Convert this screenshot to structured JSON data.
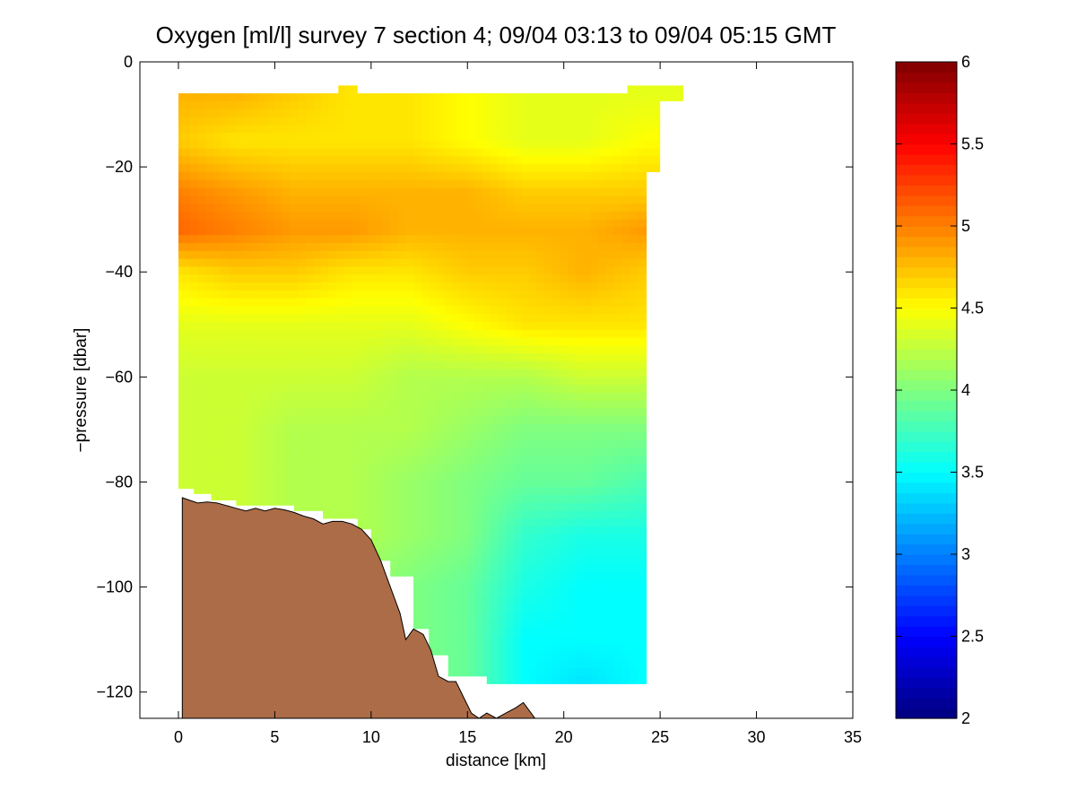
{
  "chart_data": [
    {
      "type": "heatmap",
      "title": "Oxygen [ml/l] survey 7 section 4; 09/04 03:13 to 09/04 05:15 GMT",
      "xlabel": "distance [km]",
      "ylabel": "−pressure [dbar]",
      "xlim": [
        -2,
        35
      ],
      "ylim": [
        -125,
        0
      ],
      "xticks": [
        0,
        5,
        10,
        15,
        20,
        25,
        30,
        35
      ],
      "yticks": [
        0,
        -20,
        -40,
        -60,
        -80,
        -100,
        -120
      ],
      "xtick_labels": [
        "0",
        "5",
        "10",
        "15",
        "20",
        "25",
        "30",
        "35"
      ],
      "ytick_labels": [
        "0",
        "−20",
        "−40",
        "−60",
        "−80",
        "−100",
        "−120"
      ],
      "grid": false,
      "colormap": "jet",
      "field_grid": {
        "depths": [
          -6,
          -15,
          -25,
          -32,
          -40,
          -50,
          -60,
          -70,
          -80,
          -90,
          -100,
          -110,
          -118
        ],
        "distances": [
          0,
          3,
          6,
          9,
          12,
          15,
          18,
          21,
          24.3
        ],
        "oxygen": [
          [
            4.8,
            4.8,
            4.7,
            4.6,
            4.6,
            4.5,
            4.4,
            4.4,
            4.4
          ],
          [
            4.7,
            4.6,
            4.6,
            4.6,
            4.6,
            4.5,
            4.4,
            4.4,
            4.5
          ],
          [
            5.0,
            4.9,
            4.8,
            4.8,
            4.8,
            4.8,
            4.7,
            4.7,
            4.7
          ],
          [
            5.1,
            5.0,
            4.9,
            4.9,
            4.8,
            4.8,
            4.8,
            4.8,
            4.9
          ],
          [
            4.6,
            4.7,
            4.7,
            4.6,
            4.6,
            4.7,
            4.7,
            4.8,
            4.7
          ],
          [
            4.4,
            4.4,
            4.4,
            4.4,
            4.4,
            4.5,
            4.6,
            4.6,
            4.6
          ],
          [
            4.3,
            4.3,
            4.3,
            4.3,
            4.2,
            4.2,
            4.2,
            4.3,
            4.3
          ],
          [
            4.3,
            4.3,
            4.2,
            4.2,
            4.2,
            4.1,
            4.0,
            4.0,
            4.0
          ],
          [
            4.3,
            4.3,
            4.2,
            4.2,
            4.1,
            4.0,
            3.9,
            3.9,
            3.8
          ],
          [
            4.3,
            4.3,
            4.2,
            4.2,
            4.1,
            4.0,
            3.7,
            3.6,
            3.6
          ],
          [
            4.3,
            4.3,
            4.2,
            4.1,
            4.0,
            3.9,
            3.6,
            3.5,
            3.5
          ],
          [
            4.3,
            4.3,
            4.2,
            4.1,
            4.0,
            3.9,
            3.5,
            3.5,
            3.5
          ],
          [
            4.3,
            4.3,
            4.2,
            4.1,
            4.0,
            3.9,
            3.5,
            3.4,
            3.5
          ]
        ]
      },
      "data_region_outline": [
        [
          0,
          -6
        ],
        [
          8.3,
          -6
        ],
        [
          8.3,
          -4.5
        ],
        [
          9.3,
          -4.5
        ],
        [
          9.3,
          -6
        ],
        [
          23.3,
          -6
        ],
        [
          23.3,
          -4.5
        ],
        [
          26.2,
          -4.5
        ],
        [
          26.2,
          -7.5
        ],
        [
          25.0,
          -7.5
        ],
        [
          25.0,
          -21
        ],
        [
          24.3,
          -21
        ],
        [
          24.3,
          -118.5
        ],
        [
          16.0,
          -118.5
        ],
        [
          16.0,
          -117
        ],
        [
          14.0,
          -117
        ],
        [
          14.0,
          -113
        ],
        [
          13.0,
          -113
        ],
        [
          13.0,
          -108
        ],
        [
          12.2,
          -108
        ],
        [
          12.2,
          -98
        ],
        [
          11.0,
          -98
        ],
        [
          11.0,
          -95
        ],
        [
          10.0,
          -95
        ],
        [
          10.0,
          -89
        ],
        [
          9.3,
          -89
        ],
        [
          9.3,
          -87
        ],
        [
          7.5,
          -87
        ],
        [
          7.5,
          -85.5
        ],
        [
          6.0,
          -85.5
        ],
        [
          6.0,
          -84.5
        ],
        [
          3.0,
          -84.5
        ],
        [
          3.0,
          -83.5
        ],
        [
          1.7,
          -83.5
        ],
        [
          1.7,
          -82.3
        ],
        [
          0.8,
          -82.3
        ],
        [
          0.8,
          -81.3
        ],
        [
          0,
          -81.3
        ]
      ],
      "bathymetry": [
        [
          0.2,
          -83
        ],
        [
          0.6,
          -83.5
        ],
        [
          1.0,
          -84
        ],
        [
          1.5,
          -83.8
        ],
        [
          2.0,
          -84
        ],
        [
          2.5,
          -84.5
        ],
        [
          3.0,
          -85
        ],
        [
          3.5,
          -85.5
        ],
        [
          4.0,
          -85
        ],
        [
          4.5,
          -85.5
        ],
        [
          5.0,
          -85
        ],
        [
          5.5,
          -85.3
        ],
        [
          6.0,
          -85.8
        ],
        [
          6.5,
          -86.5
        ],
        [
          7.0,
          -87
        ],
        [
          7.5,
          -88
        ],
        [
          8.0,
          -87.5
        ],
        [
          8.5,
          -87.5
        ],
        [
          9.0,
          -88
        ],
        [
          9.5,
          -89
        ],
        [
          10.0,
          -91
        ],
        [
          10.5,
          -95
        ],
        [
          11.0,
          -100
        ],
        [
          11.5,
          -105
        ],
        [
          11.8,
          -110
        ],
        [
          12.2,
          -108
        ],
        [
          12.7,
          -109
        ],
        [
          13.1,
          -112
        ],
        [
          13.5,
          -117
        ],
        [
          14.0,
          -118
        ],
        [
          14.4,
          -118
        ],
        [
          14.8,
          -121
        ],
        [
          15.2,
          -124
        ],
        [
          15.6,
          -125
        ],
        [
          16.0,
          -124
        ],
        [
          16.5,
          -125
        ],
        [
          17.0,
          -124
        ],
        [
          17.5,
          -123
        ],
        [
          17.9,
          -122
        ],
        [
          18.3,
          -124
        ],
        [
          18.5,
          -125
        ]
      ],
      "bathymetry_color": "#ac6c48",
      "empty_value_color": "#ffffff",
      "colorbar": {
        "min": 2,
        "max": 6,
        "ticks": [
          2,
          2.5,
          3,
          3.5,
          4,
          4.5,
          5,
          5.5,
          6
        ],
        "tick_labels": [
          "2",
          "2.5",
          "3",
          "3.5",
          "4",
          "4.5",
          "5",
          "5.5",
          "6"
        ],
        "placement": "right"
      }
    }
  ]
}
